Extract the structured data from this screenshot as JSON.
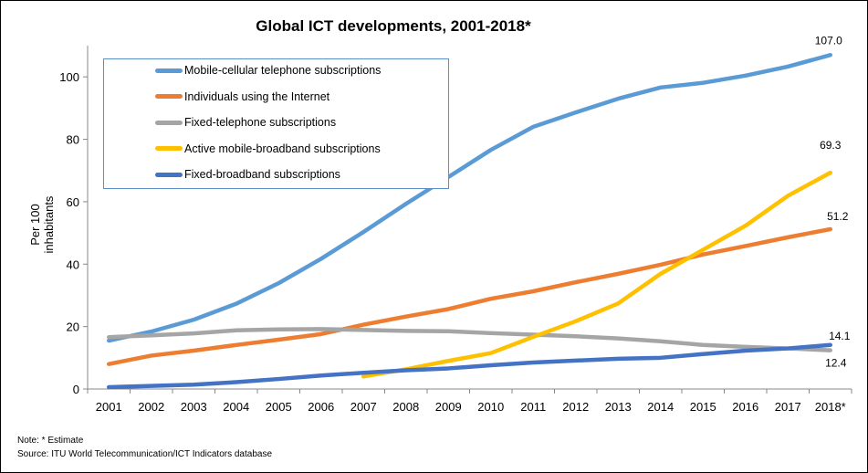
{
  "chart_data": {
    "type": "line",
    "title": "Global ICT developments, 2001-2018*",
    "ylabel": "Per 100 inhabitants",
    "xlabel": "",
    "ylim": [
      0,
      110
    ],
    "yticks": [
      0,
      20,
      40,
      60,
      80,
      100
    ],
    "categories": [
      "2001",
      "2002",
      "2003",
      "2004",
      "2005",
      "2006",
      "2007",
      "2008",
      "2009",
      "2010",
      "2011",
      "2012",
      "2013",
      "2014",
      "2015",
      "2016",
      "2017",
      "2018*"
    ],
    "grid": false,
    "legend": "top-left",
    "series": [
      {
        "name": "Mobile-cellular telephone subscriptions",
        "color": "#5b9bd5",
        "values": [
          15.5,
          18.4,
          22.2,
          27.3,
          33.9,
          41.7,
          50.3,
          59.3,
          67.9,
          76.6,
          84.0,
          88.6,
          93.0,
          96.6,
          98.1,
          100.4,
          103.3,
          107.0
        ],
        "end_label": "107.0"
      },
      {
        "name": "Individuals using the Internet",
        "color": "#ed7d31",
        "values": [
          8.0,
          10.7,
          12.3,
          14.1,
          15.8,
          17.6,
          20.6,
          23.2,
          25.6,
          28.9,
          31.3,
          34.2,
          36.9,
          39.8,
          43.1,
          45.8,
          48.6,
          51.2
        ],
        "end_label": "51.2"
      },
      {
        "name": "Fixed-telephone subscriptions",
        "color": "#a5a5a5",
        "values": [
          16.6,
          17.2,
          17.8,
          18.8,
          19.1,
          19.2,
          18.9,
          18.6,
          18.5,
          17.9,
          17.4,
          16.9,
          16.2,
          15.3,
          14.1,
          13.5,
          13.0,
          12.4
        ],
        "end_label": "12.4"
      },
      {
        "name": "Active mobile-broadband subscriptions",
        "color": "#ffc000",
        "values": [
          null,
          null,
          null,
          null,
          null,
          null,
          4.0,
          6.3,
          9.0,
          11.5,
          16.7,
          21.7,
          27.4,
          36.9,
          44.6,
          52.3,
          61.9,
          69.3
        ],
        "end_label": "69.3"
      },
      {
        "name": "Fixed-broadband subscriptions",
        "color": "#4472c4",
        "values": [
          0.6,
          1.0,
          1.4,
          2.2,
          3.2,
          4.3,
          5.2,
          6.0,
          6.6,
          7.6,
          8.5,
          9.1,
          9.7,
          10.0,
          11.2,
          12.3,
          13.0,
          14.1
        ],
        "end_label": "14.1"
      }
    ]
  },
  "notes": {
    "note": "Note: * Estimate",
    "source": "Source:  ITU World Telecommunication/ICT Indicators database"
  }
}
